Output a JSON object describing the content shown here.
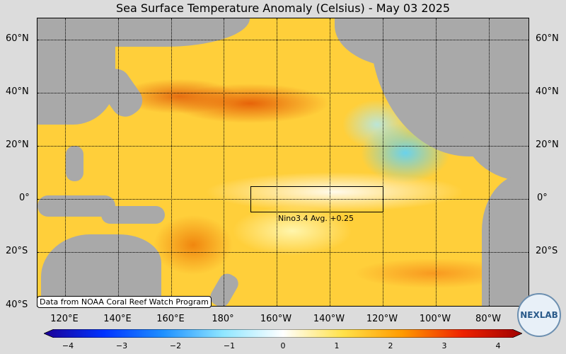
{
  "title": "Sea Surface Temperature Anomaly (Celsius) - May 03 2025",
  "nino": {
    "label": "Nino3.4 Avg. +0.25",
    "value": 0.25
  },
  "credit": "Data from NOAA Coral Reef Watch Program",
  "logo_text": "NEXLAB",
  "lat_labels_left": [
    "60°N",
    "40°N",
    "20°N",
    "0°",
    "20°S",
    "40°S"
  ],
  "lat_labels_right": [
    "60°N",
    "40°N",
    "20°N",
    "0°",
    "20°S"
  ],
  "lon_labels": [
    "120°E",
    "140°E",
    "160°E",
    "180°",
    "160°W",
    "140°W",
    "120°W",
    "100°W",
    "80°W"
  ],
  "colorbar": {
    "ticks": [
      "−4",
      "−3",
      "−2",
      "−1",
      "0",
      "1",
      "2",
      "3",
      "4"
    ],
    "range": [
      -4,
      4
    ],
    "colors": [
      "#1c0096",
      "#0033ff",
      "#1e90ff",
      "#8fe6ff",
      "#ffffff",
      "#ffe24a",
      "#ff9a00",
      "#ee2200",
      "#a00000"
    ]
  },
  "colors": {
    "land": "#a9a9a9",
    "background": "#dcdcdc"
  }
}
